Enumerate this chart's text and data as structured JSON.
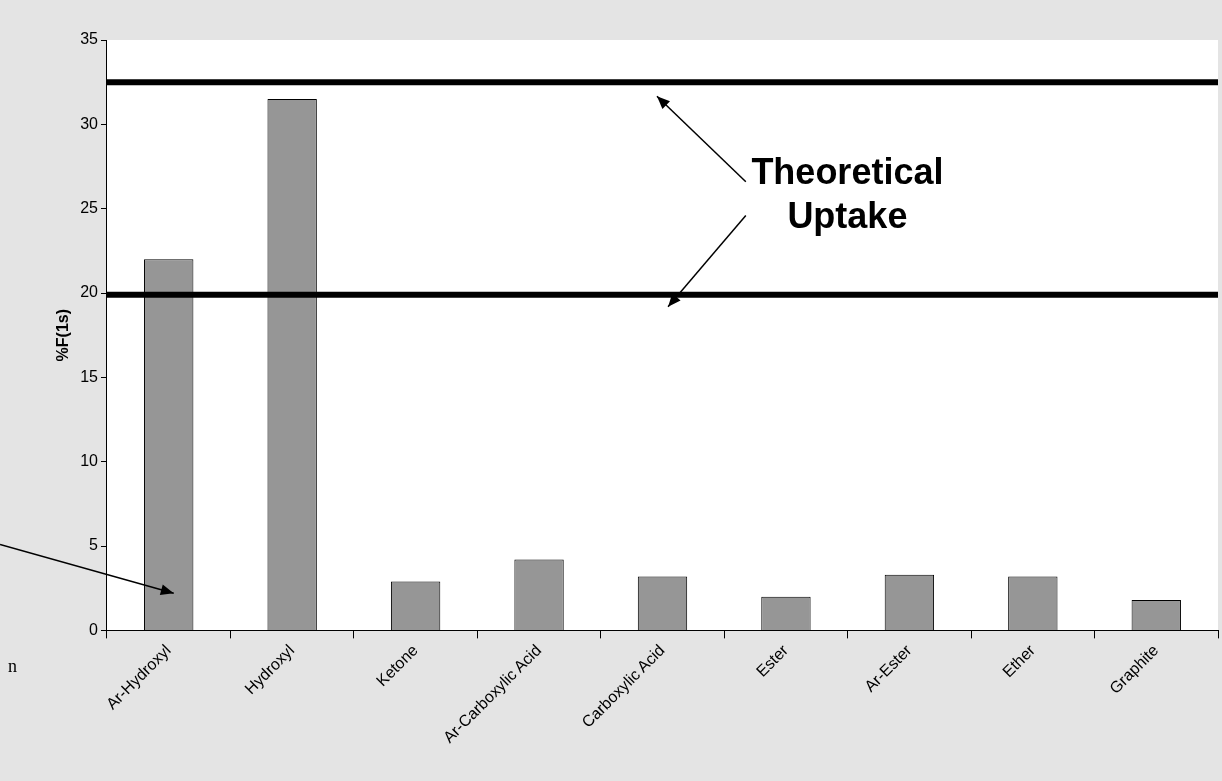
{
  "chart_data": {
    "type": "bar",
    "ylabel": "%F(1s)",
    "categories": [
      "Ar-Hydroxyl",
      "Hydroxyl",
      "Ketone",
      "Ar-Carboxylic Acid",
      "Carboxylic Acid",
      "Ester",
      "Ar-Ester",
      "Ether",
      "Graphite"
    ],
    "values": [
      22,
      31.5,
      2.9,
      4.2,
      3.2,
      2,
      3.3,
      3.2,
      1.8
    ],
    "color": "#969696",
    "ylim": [
      0,
      35
    ],
    "yticks": [
      0,
      5,
      10,
      15,
      20,
      25,
      30,
      35
    ],
    "grid": false,
    "legend": false,
    "ref_lines": [
      {
        "axis": "y",
        "value": 32.5,
        "color": "#000000"
      },
      {
        "axis": "y",
        "value": 19.9,
        "color": "#000000"
      }
    ],
    "annotations": [
      "Theoretical\nUptake",
      "n"
    ]
  }
}
